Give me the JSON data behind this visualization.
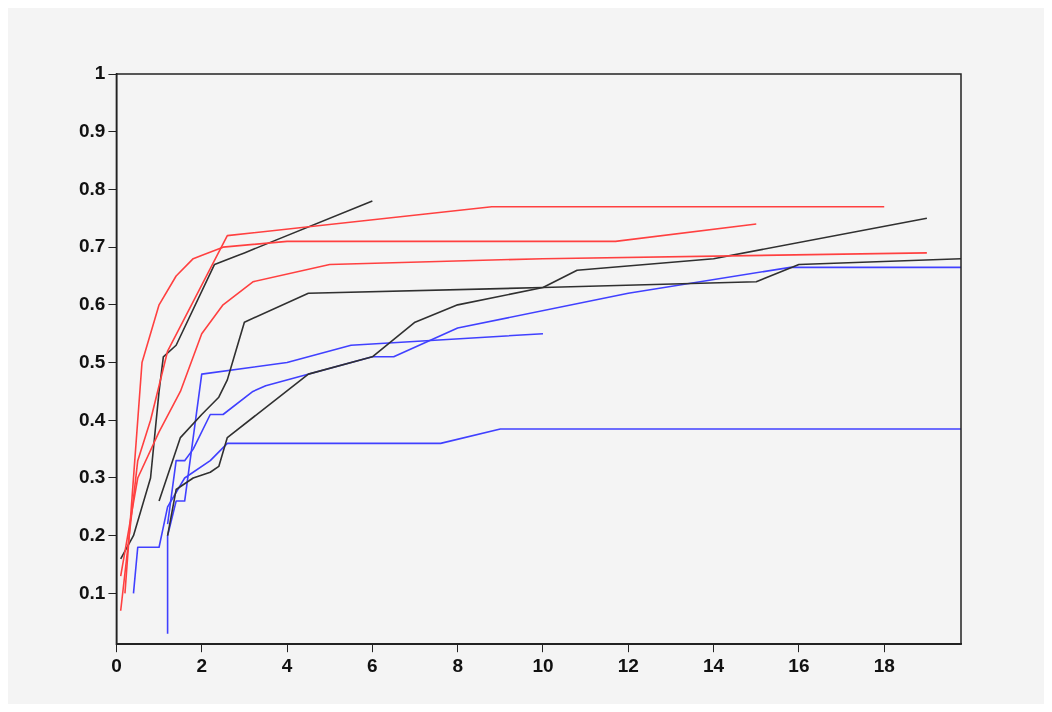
{
  "chart_data": {
    "type": "line",
    "xlim": [
      0,
      19.8
    ],
    "ylim": [
      0.012,
      1
    ],
    "xticks": [
      0,
      2,
      4,
      6,
      8,
      10,
      12,
      14,
      16,
      18
    ],
    "yticks": [
      0.1,
      0.2,
      0.3,
      0.4,
      0.5,
      0.6,
      0.7,
      0.8,
      0.9,
      1
    ],
    "grid": false,
    "legend": false,
    "marker": "none",
    "line_style": "solid",
    "series": [
      {
        "color": "#ff4040",
        "x": [
          0.1,
          0.3,
          0.5,
          0.8,
          1.2,
          2.6,
          8.8,
          18
        ],
        "values": [
          0.07,
          0.2,
          0.33,
          0.4,
          0.52,
          0.72,
          0.77,
          0.77
        ]
      },
      {
        "color": "#ff4040",
        "x": [
          0.2,
          0.6,
          1.0,
          1.4,
          1.8,
          2.5,
          4,
          11.7,
          15
        ],
        "values": [
          0.1,
          0.5,
          0.6,
          0.65,
          0.68,
          0.7,
          0.71,
          0.71,
          0.74
        ]
      },
      {
        "color": "#ff4040",
        "x": [
          0.1,
          0.5,
          1.0,
          1.5,
          2.0,
          2.5,
          3.2,
          5,
          10,
          19
        ],
        "values": [
          0.13,
          0.3,
          0.38,
          0.45,
          0.55,
          0.6,
          0.64,
          0.67,
          0.68,
          0.69
        ]
      },
      {
        "color": "#303030",
        "x": [
          0.1,
          0.4,
          0.8,
          1.0,
          1.1,
          1.4,
          2.3,
          3,
          6
        ],
        "values": [
          0.16,
          0.2,
          0.3,
          0.45,
          0.51,
          0.53,
          0.67,
          0.69,
          0.78
        ]
      },
      {
        "color": "#303030",
        "x": [
          1,
          1.5,
          2,
          2.4,
          2.6,
          2.8,
          3,
          4.5,
          10,
          15,
          16,
          19.8
        ],
        "values": [
          0.26,
          0.37,
          0.41,
          0.44,
          0.47,
          0.52,
          0.57,
          0.62,
          0.63,
          0.64,
          0.67,
          0.68
        ]
      },
      {
        "color": "#303030",
        "x": [
          1.2,
          1.4,
          1.8,
          2.2,
          2.4,
          2.6,
          4.5,
          6,
          7,
          8,
          10,
          10.8,
          14,
          19
        ],
        "values": [
          0.2,
          0.28,
          0.3,
          0.31,
          0.32,
          0.37,
          0.48,
          0.51,
          0.57,
          0.6,
          0.63,
          0.66,
          0.68,
          0.75
        ]
      },
      {
        "color": "#4040ff",
        "x": [
          0.4,
          0.5,
          1,
          1.2,
          1.6,
          2.2,
          2.6,
          7.6,
          9,
          19.8
        ],
        "values": [
          0.1,
          0.18,
          0.18,
          0.25,
          0.3,
          0.33,
          0.36,
          0.36,
          0.385,
          0.385
        ]
      },
      {
        "color": "#4040ff",
        "x": [
          1.2,
          1.2,
          1.4,
          1.6,
          2.0,
          4,
          5.5,
          10
        ],
        "values": [
          0.03,
          0.2,
          0.26,
          0.26,
          0.48,
          0.5,
          0.53,
          0.55
        ]
      },
      {
        "color": "#4040ff",
        "x": [
          1.2,
          1.4,
          1.6,
          1.8,
          2.2,
          2.5,
          3.2,
          3.5,
          6,
          6.5,
          8,
          12,
          15.8,
          19.8
        ],
        "values": [
          0.22,
          0.33,
          0.33,
          0.35,
          0.41,
          0.41,
          0.45,
          0.46,
          0.51,
          0.51,
          0.56,
          0.62,
          0.665,
          0.665
        ]
      }
    ]
  }
}
